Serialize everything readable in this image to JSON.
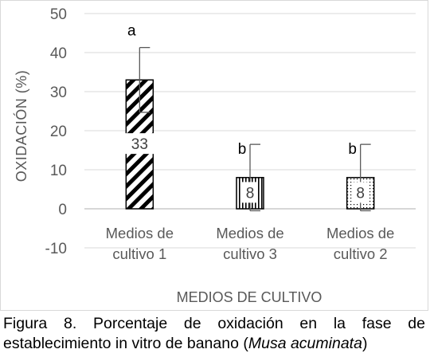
{
  "chart_data": {
    "type": "bar",
    "title": "",
    "xlabel": "MEDIOS DE CULTIVO",
    "ylabel": "OXIDACIÓN (%)",
    "ylim": [
      -10,
      50
    ],
    "yticks": [
      -10,
      0,
      10,
      20,
      30,
      40,
      50
    ],
    "categories": [
      "Medios de cultivo 1",
      "Medios de cultivo 3",
      "Medios de cultivo 2"
    ],
    "category_lines": [
      [
        "Medios de",
        "cultivo 1"
      ],
      [
        "Medios de",
        "cultivo 3"
      ],
      [
        "Medios de",
        "cultivo 2"
      ]
    ],
    "values": [
      33,
      8,
      8
    ],
    "error_bars": [
      8.3,
      8.5,
      8.5
    ],
    "data_labels": [
      "33",
      "8",
      "8"
    ],
    "significance_letters": [
      "a",
      "b",
      "b"
    ],
    "patterns": [
      "diagonal-stripes",
      "vertical-lines",
      "dotted"
    ],
    "grid": true,
    "legend": "none",
    "colors": {
      "bar": "#000000",
      "grid": "#d9d9d9",
      "axis_text": "#595959",
      "error_bar": "#595959"
    }
  },
  "caption": {
    "text": "Figura 8. Porcentaje de oxidación en la fase de establecimiento in vitro de banano (",
    "italic": "Musa acuminata",
    "tail": ")"
  }
}
